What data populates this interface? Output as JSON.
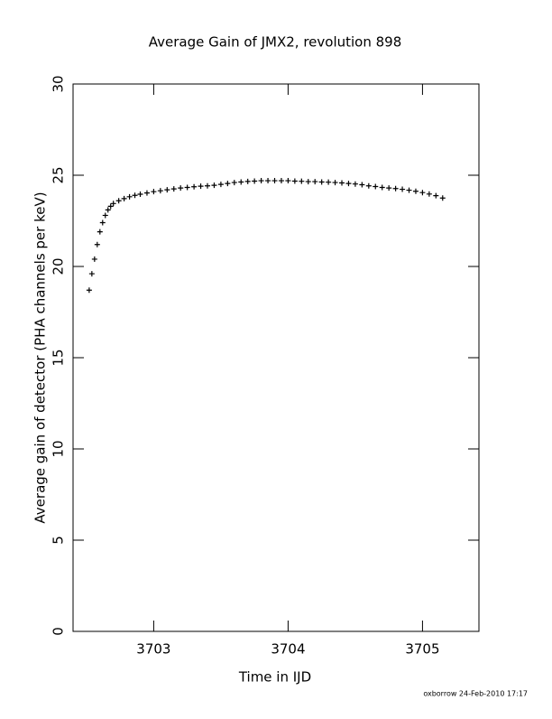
{
  "chart_data": {
    "type": "scatter",
    "title": "Average Gain of JMX2, revolution 898",
    "xlabel": "Time in IJD",
    "ylabel": "Average gain of detector (PHA channels per keV)",
    "footer": "oxborrow 24-Feb-2010 17:17",
    "xlim": [
      3702.4,
      3705.42
    ],
    "xticks": [
      3703,
      3704,
      3705
    ],
    "ylim": [
      0,
      30
    ],
    "yticks": [
      0,
      5,
      10,
      15,
      20,
      25,
      30
    ],
    "marker": "+",
    "color": "#000000",
    "x": [
      3702.52,
      3702.54,
      3702.56,
      3702.58,
      3702.6,
      3702.62,
      3702.64,
      3702.66,
      3702.68,
      3702.7,
      3702.74,
      3702.78,
      3702.82,
      3702.86,
      3702.9,
      3702.95,
      3703.0,
      3703.05,
      3703.1,
      3703.15,
      3703.2,
      3703.25,
      3703.3,
      3703.35,
      3703.4,
      3703.45,
      3703.5,
      3703.55,
      3703.6,
      3703.65,
      3703.7,
      3703.75,
      3703.8,
      3703.85,
      3703.9,
      3703.95,
      3704.0,
      3704.05,
      3704.1,
      3704.15,
      3704.2,
      3704.25,
      3704.3,
      3704.35,
      3704.4,
      3704.45,
      3704.5,
      3704.55,
      3704.6,
      3704.65,
      3704.7,
      3704.75,
      3704.8,
      3704.85,
      3704.9,
      3704.95,
      3705.0,
      3705.05,
      3705.1,
      3705.15
    ],
    "values": [
      18.7,
      19.6,
      20.4,
      21.2,
      21.9,
      22.4,
      22.8,
      23.1,
      23.3,
      23.45,
      23.6,
      23.72,
      23.82,
      23.9,
      23.96,
      24.03,
      24.1,
      24.15,
      24.2,
      24.25,
      24.3,
      24.33,
      24.37,
      24.4,
      24.42,
      24.45,
      24.5,
      24.55,
      24.6,
      24.63,
      24.66,
      24.68,
      24.7,
      24.7,
      24.7,
      24.7,
      24.7,
      24.68,
      24.67,
      24.65,
      24.65,
      24.63,
      24.62,
      24.6,
      24.58,
      24.55,
      24.52,
      24.48,
      24.42,
      24.38,
      24.33,
      24.3,
      24.27,
      24.23,
      24.18,
      24.12,
      24.05,
      23.97,
      23.88,
      23.75
    ]
  }
}
